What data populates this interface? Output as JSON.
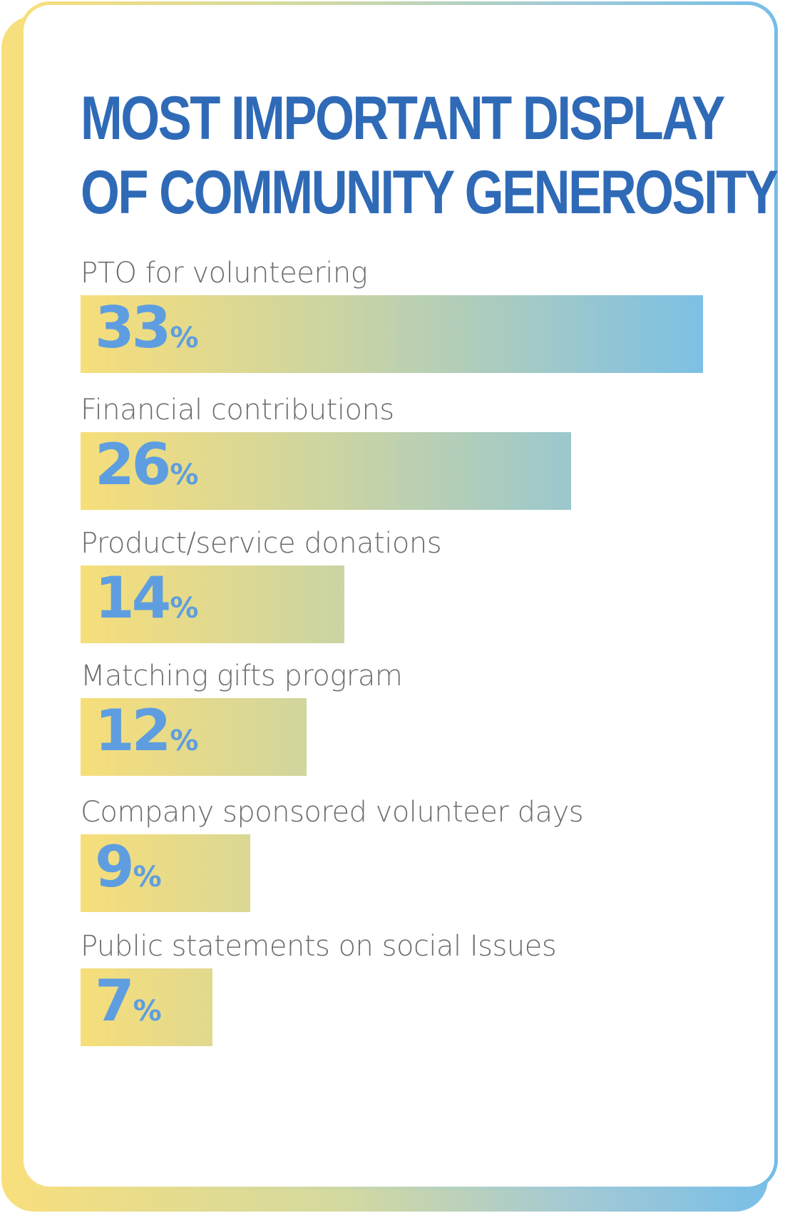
{
  "chart_data": {
    "type": "bar",
    "orientation": "horizontal",
    "title": "MOST IMPORTANT DISPLAY OF COMMUNITY GENEROSITY",
    "title_lines": [
      "MOST IMPORTANT DISPLAY",
      "OF COMMUNITY GENEROSITY"
    ],
    "categories": [
      "PTO for volunteering",
      "Financial contributions",
      "Product/service donations",
      "Matching gifts program",
      "Company sponsored volunteer days",
      "Public statements on social Issues"
    ],
    "values": [
      33,
      26,
      14,
      12,
      9,
      7
    ],
    "value_suffix": "%",
    "xlim": [
      0,
      33
    ],
    "xlabel": "",
    "ylabel": "",
    "grid": false,
    "legend": "none"
  },
  "colors": {
    "title": "#2f6ab7",
    "value_text": "#5e9ee0",
    "label_text": "#6d6d6d",
    "gradient_start": "#f7de7a",
    "gradient_end": "#7cc0e6"
  }
}
